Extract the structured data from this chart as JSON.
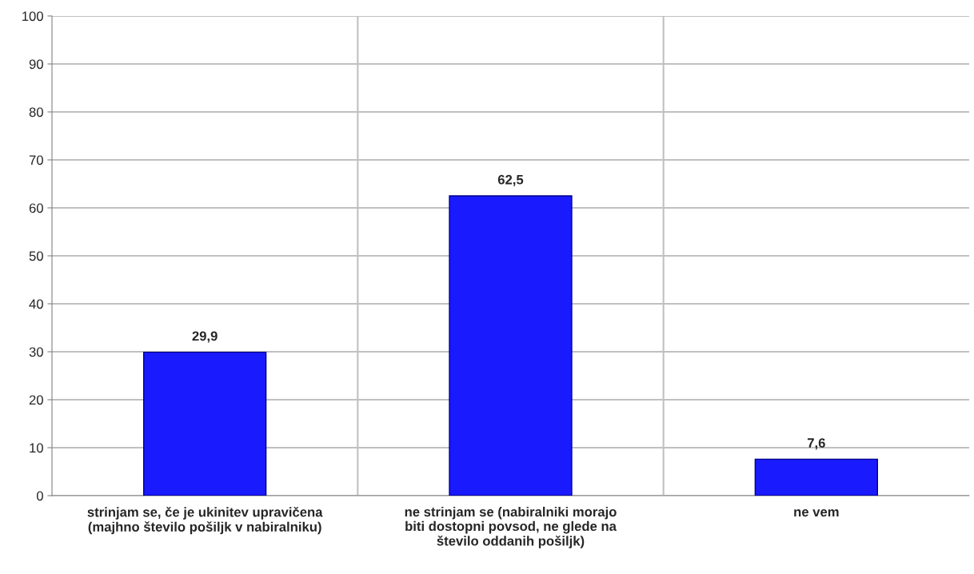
{
  "chart_data": {
    "type": "bar",
    "categories": [
      "strinjam se, če je ukinitev upravičena\n(majhno število pošiljk v nabiralniku)",
      "ne strinjam se (nabiralniki morajo\nbiti dostopni povsod, ne glede na\nštevilo oddanih pošiljk)",
      "ne vem"
    ],
    "values": [
      29.9,
      62.5,
      7.6
    ],
    "value_labels": [
      "29,9",
      "62,5",
      "7,6"
    ],
    "color": "#1a1aff",
    "ylim": [
      0,
      100
    ],
    "yticks": [
      0,
      10,
      20,
      30,
      40,
      50,
      60,
      70,
      80,
      90,
      100
    ],
    "grid": true
  }
}
